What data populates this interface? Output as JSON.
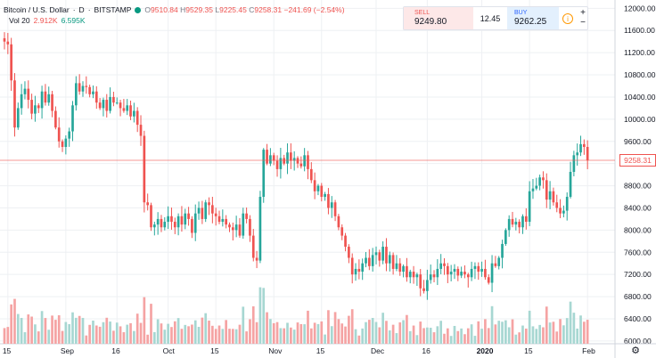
{
  "symbol": {
    "name": "Bitcoin / U.S. Dollar",
    "interval": "D",
    "exchange": "BITSTAMP",
    "open_label": "O",
    "open": "9510.84",
    "high_label": "H",
    "high": "9529.35",
    "low_label": "L",
    "low": "9225.45",
    "close_label": "C",
    "close": "9258.31",
    "change": "−241.69 (−2.54%)"
  },
  "volume": {
    "label": "Vol 20",
    "value1": "2.912K",
    "value2": "6.595K"
  },
  "trade": {
    "sell_label": "SELL",
    "sell_price": "9249.80",
    "spread": "12.45",
    "buy_label": "BUY",
    "buy_price": "9262.25",
    "info_icon": "i",
    "plus": "+",
    "minus": "−"
  },
  "last_price_tag": "9258.31",
  "settings_icon": "⚙",
  "colors": {
    "up": "#26a69a",
    "down": "#ef5350",
    "vol_up": "#a7d7d2",
    "vol_down": "#f5a3a3",
    "grid": "#eef0f3",
    "last_line": "#ef5350"
  },
  "chart_data": {
    "type": "candlestick",
    "y_axis_labels": [
      "12000.00",
      "11600.00",
      "11200.00",
      "10800.00",
      "10400.00",
      "10000.00",
      "9600.00",
      "9200.00",
      "8800.00",
      "8400.00",
      "8000.00",
      "7600.00",
      "7200.00",
      "6800.00",
      "6400.00",
      "6000.00"
    ],
    "y_axis_values": [
      12000,
      11600,
      11200,
      10800,
      10400,
      10000,
      9600,
      9200,
      8800,
      8400,
      8000,
      7600,
      7200,
      6800,
      6400,
      6000
    ],
    "ylim": [
      5950,
      12150
    ],
    "x_axis_labels": [
      {
        "label": "15",
        "day": 1
      },
      {
        "label": "Sep",
        "day": 18,
        "bold": false
      },
      {
        "label": "16",
        "day": 33
      },
      {
        "label": "Oct",
        "day": 48
      },
      {
        "label": "15",
        "day": 62
      },
      {
        "label": "Nov",
        "day": 79
      },
      {
        "label": "15",
        "day": 93
      },
      {
        "label": "Dec",
        "day": 109
      },
      {
        "label": "16",
        "day": 124
      },
      {
        "label": "2020",
        "day": 140,
        "bold": true
      },
      {
        "label": "15",
        "day": 154
      },
      {
        "label": "Feb",
        "day": 171
      }
    ],
    "last_price": 9258.31,
    "closes": [
      11400,
      11350,
      10700,
      9850,
      10200,
      10450,
      10550,
      10350,
      10100,
      10250,
      10200,
      10500,
      10300,
      10450,
      10150,
      9850,
      9600,
      9500,
      9650,
      9780,
      10250,
      10650,
      10500,
      10600,
      10580,
      10450,
      10500,
      10300,
      10200,
      10350,
      10150,
      10400,
      10300,
      10300,
      10200,
      10150,
      10250,
      10050,
      10150,
      9900,
      9700,
      8500,
      8450,
      8050,
      8100,
      8200,
      8050,
      8150,
      8250,
      8150,
      8050,
      8250,
      8100,
      8300,
      8200,
      7950,
      8300,
      8400,
      8200,
      8500,
      8450,
      8300,
      8250,
      8150,
      8200,
      8100,
      8050,
      8000,
      8100,
      7900,
      8300,
      8200,
      7900,
      7500,
      7450,
      8600,
      9450,
      9200,
      9350,
      9250,
      9100,
      9300,
      9200,
      9400,
      9250,
      9300,
      9200,
      9150,
      9350,
      9100,
      8900,
      8700,
      8800,
      8600,
      8650,
      8400,
      8500,
      8250,
      8050,
      7900,
      7700,
      7500,
      7200,
      7300,
      7250,
      7400,
      7500,
      7350,
      7550,
      7600,
      7450,
      7700,
      7400,
      7550,
      7300,
      7400,
      7250,
      7350,
      7150,
      7250,
      7150,
      7200,
      6950,
      6900,
      7100,
      7200,
      7150,
      7300,
      7400,
      7350,
      7200,
      7250,
      7300,
      7180,
      7250,
      7200,
      7150,
      7300,
      7350,
      7250,
      7300,
      7150,
      7050,
      7400,
      7350,
      7500,
      7750,
      8000,
      8200,
      8100,
      8150,
      8050,
      8250,
      8150,
      8700,
      8750,
      8800,
      8950,
      8900,
      8550,
      8700,
      8500,
      8400,
      8300,
      8350,
      8600,
      9050,
      9350,
      9400,
      9550,
      9500,
      9258
    ]
  }
}
